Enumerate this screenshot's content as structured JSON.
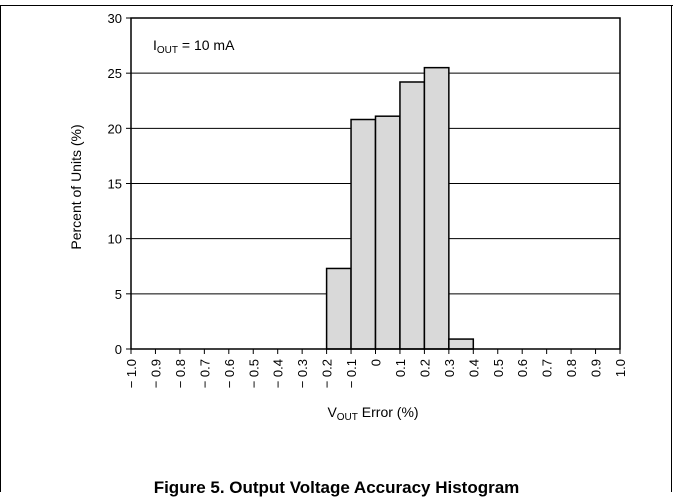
{
  "chart_data": {
    "type": "bar",
    "categories": [
      "-1.0",
      "-0.9",
      "-0.8",
      "-0.7",
      "-0.6",
      "-0.5",
      "-0.4",
      "-0.3",
      "-0.2",
      "-0.1",
      "0",
      "0.1",
      "0.2",
      "0.3",
      "0.4",
      "0.5",
      "0.6",
      "0.7",
      "0.8",
      "0.9",
      "1.0"
    ],
    "x_tick_labels": [
      "− 1.0",
      "− 0.9",
      "− 0.8",
      "− 0.7",
      "− 0.6",
      "− 0.5",
      "− 0.4",
      "− 0.3",
      "− 0.2",
      "− 0.1",
      "0",
      "0.1",
      "0.2",
      "0.3",
      "0.4",
      "0.5",
      "0.6",
      "0.7",
      "0.8",
      "0.9",
      "1.0"
    ],
    "bins": [
      {
        "from": -0.2,
        "to": -0.1,
        "value": 7.3
      },
      {
        "from": -0.1,
        "to": 0.0,
        "value": 20.8
      },
      {
        "from": 0.0,
        "to": 0.1,
        "value": 21.1
      },
      {
        "from": 0.1,
        "to": 0.2,
        "value": 24.2
      },
      {
        "from": 0.2,
        "to": 0.3,
        "value": 25.5
      },
      {
        "from": 0.3,
        "to": 0.4,
        "value": 0.9
      }
    ],
    "xlim": [
      -1.0,
      1.0
    ],
    "ylim": [
      0,
      30
    ],
    "yticks": [
      0,
      5,
      10,
      15,
      20,
      25,
      30
    ],
    "ylabel": "Percent of Units (%)",
    "xlabel": {
      "main": "V",
      "sub": "OUT",
      "rest": " Error (%)"
    },
    "annotation": {
      "main": "I",
      "sub": "OUT",
      "rest": " = 10 mA"
    },
    "grid": "horizontal",
    "bar_color": "#d9d9d9"
  },
  "caption": "Figure 5. Output Voltage Accuracy Histogram"
}
